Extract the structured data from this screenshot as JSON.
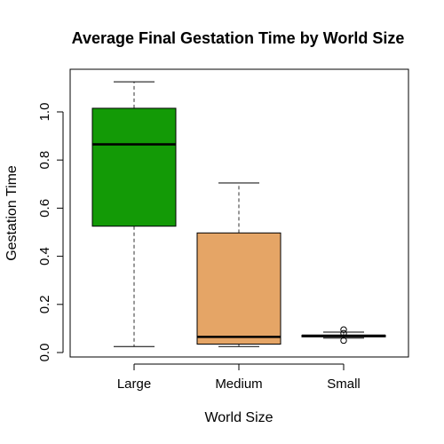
{
  "chart_data": {
    "type": "boxplot",
    "title": "Average Final Gestation Time by World Size",
    "xlabel": "World Size",
    "ylabel": "Gestation Time",
    "ylim": [
      0,
      1.13
    ],
    "yticks": [
      "0.0",
      "0.2",
      "0.4",
      "0.6",
      "0.8",
      "1.0"
    ],
    "grid": false,
    "legend": "none",
    "categories": [
      "Large",
      "Medium",
      "Small"
    ],
    "boxes": [
      {
        "category": "Large",
        "color": "#139a06",
        "whisker_low": 0.025,
        "q1": 0.525,
        "median": 0.865,
        "q3": 1.015,
        "whisker_high": 1.125,
        "outliers": []
      },
      {
        "category": "Medium",
        "color": "#e5a566",
        "whisker_low": 0.025,
        "q1": 0.035,
        "median": 0.065,
        "q3": 0.497,
        "whisker_high": 0.705,
        "outliers": []
      },
      {
        "category": "Small",
        "color": "#ffffff",
        "whisker_low": 0.06,
        "q1": 0.065,
        "median": 0.07,
        "q3": 0.072,
        "whisker_high": 0.085,
        "outliers": [
          0.05,
          0.08,
          0.095
        ]
      }
    ]
  }
}
